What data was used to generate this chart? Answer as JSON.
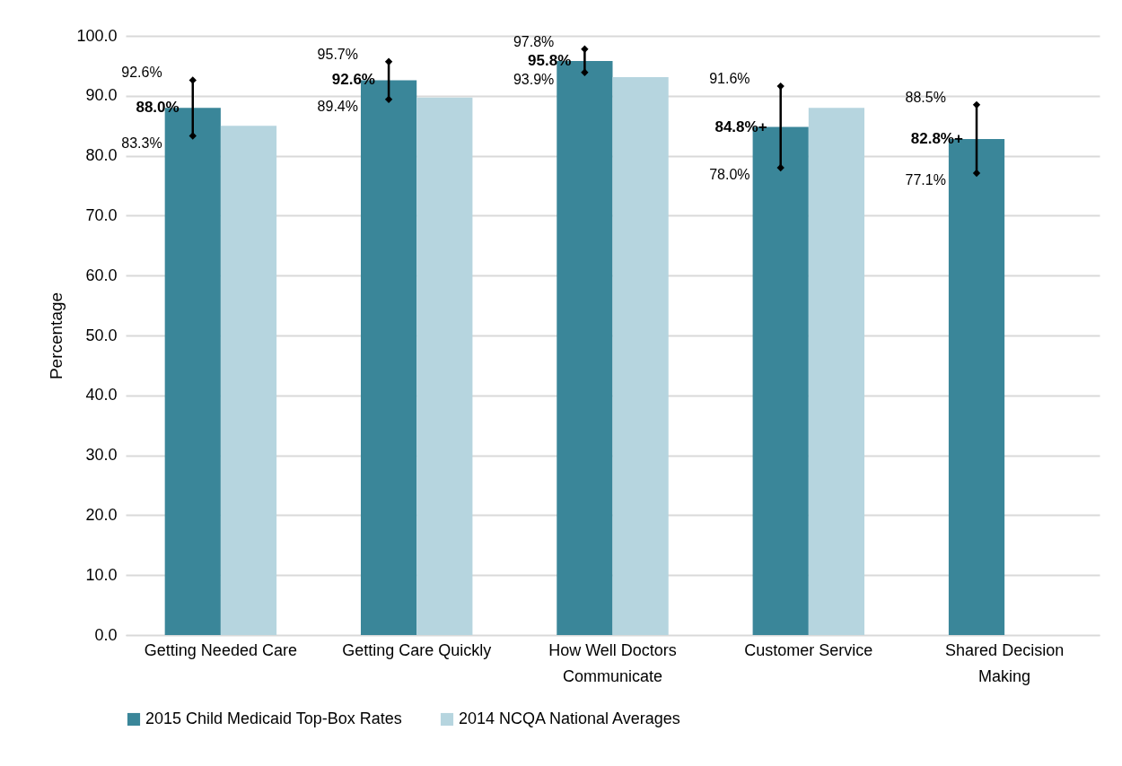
{
  "chart_data": {
    "type": "bar",
    "categories": [
      "Getting Needed Care",
      "Getting Care Quickly",
      "How Well Doctors Communicate",
      "Customer Service",
      "Shared Decision Making"
    ],
    "ylabel": "Percentage",
    "ylim": [
      0,
      100
    ],
    "yticks": [
      {
        "value": 0,
        "label": "0.0"
      },
      {
        "value": 10,
        "label": "10.0"
      },
      {
        "value": 20,
        "label": "20.0"
      },
      {
        "value": 30,
        "label": "30.0"
      },
      {
        "value": 40,
        "label": "40.0"
      },
      {
        "value": 50,
        "label": "50.0"
      },
      {
        "value": 60,
        "label": "60.0"
      },
      {
        "value": 70,
        "label": "70.0"
      },
      {
        "value": 80,
        "label": "80.0"
      },
      {
        "value": 90,
        "label": "90.0"
      },
      {
        "value": 100,
        "label": "100.0"
      }
    ],
    "grid": "y",
    "legend": "bottom",
    "series": [
      {
        "name": "2015 Child Medicaid Top-Box Rates",
        "color": "#3a8699",
        "values": [
          88.0,
          92.6,
          95.8,
          84.8,
          82.8
        ],
        "value_labels": [
          "88.0%",
          "92.6%",
          "95.8%",
          "84.8%+",
          "82.8%+"
        ],
        "errors": [
          [
            83.3,
            92.6
          ],
          [
            89.4,
            95.7
          ],
          [
            93.9,
            97.8
          ],
          [
            78.0,
            91.6
          ],
          [
            77.1,
            88.5
          ]
        ]
      },
      {
        "name": "2014 NCQA National Averages",
        "color": "#b6d5df",
        "values": [
          85.0,
          89.7,
          93.1,
          88.0,
          null
        ]
      }
    ],
    "annotations": [
      "92.6%",
      "83.3%",
      "95.7%",
      "89.4%",
      "97.8%",
      "93.9%",
      "91.6%",
      "78.0%",
      "88.5%",
      "77.1%"
    ]
  }
}
